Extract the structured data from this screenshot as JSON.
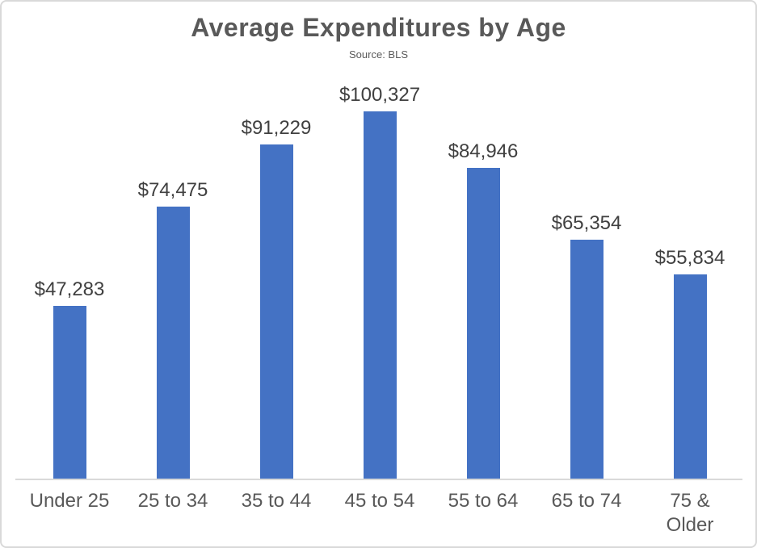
{
  "chart": {
    "title": "Average Expenditures by Age",
    "subtitle": "Source: BLS"
  },
  "chart_data": {
    "type": "bar",
    "title": "Average Expenditures by Age",
    "subtitle": "Source: BLS",
    "categories": [
      "Under 25",
      "25 to 34",
      "35 to 44",
      "45 to 54",
      "55 to 64",
      "65 to 74",
      "75 & Older"
    ],
    "values": [
      47283,
      74475,
      91229,
      100327,
      84946,
      65354,
      55834
    ],
    "data_labels": [
      "$47,283",
      "$74,475",
      "$91,229",
      "$100,327",
      "$84,946",
      "$65,354",
      "$55,834"
    ],
    "xlabel": "",
    "ylabel": "",
    "ylim": [
      0,
      110000
    ],
    "grid": false,
    "legend": false,
    "y_axis_visible": false,
    "bar_color": "#4472c4",
    "axis_line_color": "#d9d9d9",
    "title_color": "#595959",
    "data_label_color": "#404040",
    "axis_label_color": "#595959"
  }
}
